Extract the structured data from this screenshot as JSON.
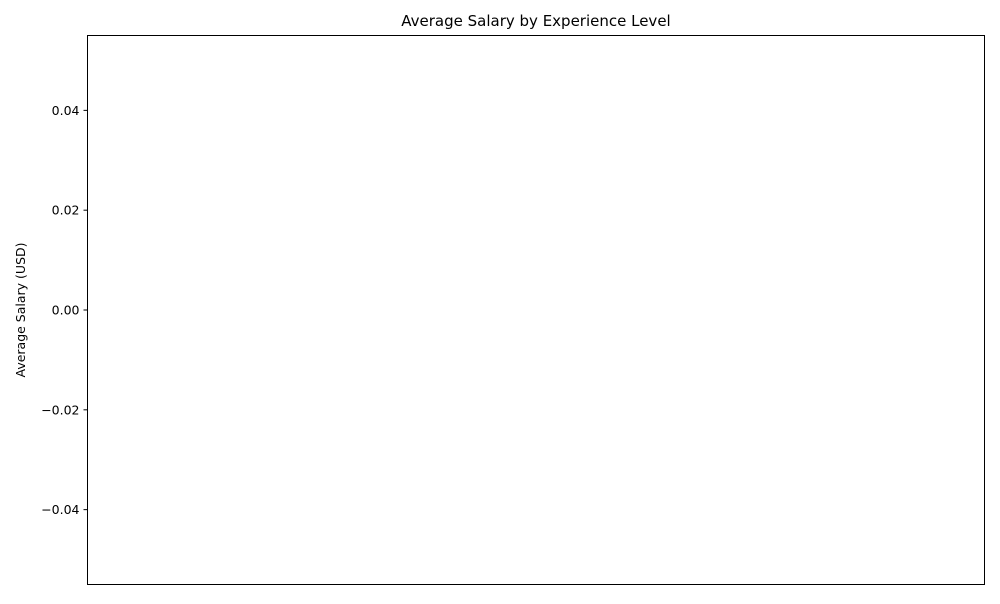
{
  "chart_data": {
    "type": "bar",
    "title": "Average Salary by Experience Level",
    "xlabel": "",
    "ylabel": "Average Salary (USD)",
    "categories": [],
    "values": [],
    "ylim": [
      -0.055,
      0.055
    ],
    "yticks": [
      -0.04,
      -0.02,
      0.0,
      0.02,
      0.04
    ],
    "ytick_labels": [
      "−0.04",
      "−0.02",
      "0.00",
      "0.02",
      "0.04"
    ],
    "xticks": [],
    "grid": false,
    "legend": "none"
  }
}
